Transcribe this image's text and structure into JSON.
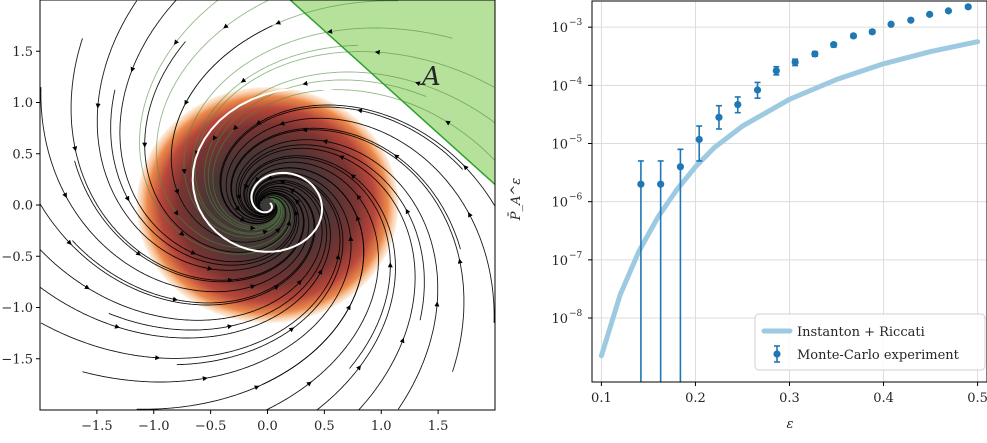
{
  "chart_data": [
    {
      "type": "streamplot",
      "title": "",
      "xlabel": "",
      "ylabel": "",
      "xlim": [
        -2.0,
        2.0
      ],
      "ylim": [
        -2.0,
        2.0
      ],
      "x_ticks": [
        "−1.5",
        "−1.0",
        "−0.5",
        "0.0",
        "0.5",
        "1.0",
        "1.5"
      ],
      "x_tick_values": [
        -1.5,
        -1.0,
        -0.5,
        0.0,
        0.5,
        1.0,
        1.5
      ],
      "y_ticks": [
        "1.5",
        "1.0",
        "0.5",
        "0.0",
        "−0.5",
        "−1.0",
        "−1.5"
      ],
      "y_tick_values": [
        1.5,
        1.0,
        0.5,
        0.0,
        -0.5,
        -1.0,
        -1.5
      ],
      "set_boundary": {
        "x1": 0.2,
        "y1": 2.0,
        "x2": 2.0,
        "y2": 0.2
      },
      "set_label": "A",
      "instanton_endpoint": [
        1.0,
        0.93
      ],
      "density_cloud_radius": 1.15,
      "colors": {
        "set_fill": "#a9dc8a",
        "set_edge": "#2ca02c",
        "set_label": "#2ca02c",
        "streamlines": "#000000",
        "instanton": "#ffffff"
      }
    },
    {
      "type": "line+errorbar",
      "title": "",
      "xlabel": "ε",
      "ylabel": "P̄_A^ε",
      "xlim": [
        0.09,
        0.51
      ],
      "ylim_log10": [
        -9.1,
        -2.55
      ],
      "log_scale_y": true,
      "grid": true,
      "legend_placement": "lower-right",
      "x_ticks": [
        "0.1",
        "0.2",
        "0.3",
        "0.4",
        "0.5"
      ],
      "x_tick_values": [
        0.1,
        0.2,
        0.3,
        0.4,
        0.5
      ],
      "y_tick_values_log10": [
        -3,
        -4,
        -5,
        -6,
        -7,
        -8
      ],
      "y_tick_base": "10",
      "y_tick_exponents": [
        "−3",
        "−4",
        "−5",
        "−6",
        "−7",
        "−8"
      ],
      "series": [
        {
          "name": "Instanton + Riccati",
          "kind": "line",
          "color": "#9ecae1",
          "x": [
            0.1,
            0.12,
            0.14,
            0.16,
            0.18,
            0.2,
            0.22,
            0.25,
            0.3,
            0.35,
            0.4,
            0.45,
            0.5
          ],
          "log10_y": [
            -8.65,
            -7.6,
            -6.85,
            -6.27,
            -5.8,
            -5.4,
            -5.07,
            -4.7,
            -4.24,
            -3.9,
            -3.63,
            -3.42,
            -3.25
          ]
        },
        {
          "name": "Monte-Carlo experiment",
          "kind": "errorbar",
          "color": "#1f77b4",
          "x": [
            0.142,
            0.163,
            0.184,
            0.204,
            0.225,
            0.245,
            0.266,
            0.286,
            0.306,
            0.327,
            0.347,
            0.368,
            0.388,
            0.408,
            0.429,
            0.449,
            0.469,
            0.49
          ],
          "log10_y": [
            -5.7,
            -5.7,
            -5.4,
            -4.93,
            -4.55,
            -4.33,
            -4.08,
            -3.75,
            -3.6,
            -3.46,
            -3.3,
            -3.15,
            -3.08,
            -2.95,
            -2.88,
            -2.78,
            -2.72,
            -2.65
          ],
          "log10_err_low": [
            -9.3,
            -9.3,
            -9.3,
            -5.3,
            -4.75,
            -4.47,
            -4.22,
            -3.82,
            -3.66,
            -3.5,
            -3.34,
            -3.18,
            -3.11,
            -2.97,
            -2.9,
            -2.8,
            -2.74,
            -2.67
          ],
          "log10_err_high": [
            -5.3,
            -5.3,
            -5.1,
            -4.7,
            -4.35,
            -4.2,
            -3.95,
            -3.68,
            -3.55,
            -3.42,
            -3.27,
            -3.12,
            -3.05,
            -2.93,
            -2.86,
            -2.76,
            -2.7,
            -2.63
          ]
        }
      ]
    }
  ]
}
